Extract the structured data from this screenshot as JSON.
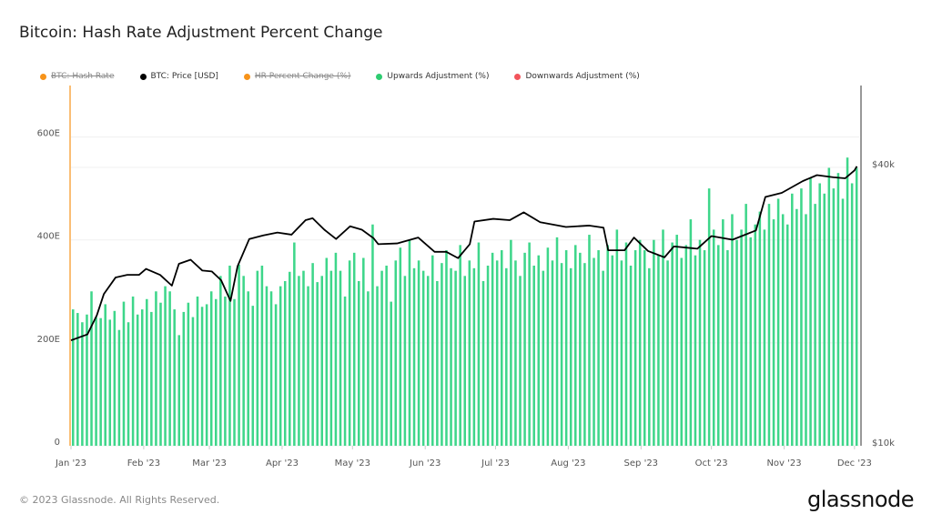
{
  "title": "Bitcoin: Hash Rate Adjustment Percent Change",
  "footer": "© 2023 Glassnode. All Rights Reserved.",
  "logo": "glassnode",
  "legend": [
    {
      "label": "BTC: Hash Rate",
      "color": "#f7931a",
      "hidden": true
    },
    {
      "label": "BTC: Price [USD]",
      "color": "#000000",
      "hidden": false
    },
    {
      "label": "HR Percent Change (%)",
      "color": "#f7931a",
      "hidden": true
    },
    {
      "label": "Upwards Adjustment (%)",
      "color": "#2ecc71",
      "hidden": false
    },
    {
      "label": "Downwards Adjustment (%)",
      "color": "#f2545b",
      "hidden": false
    }
  ],
  "chart_data": {
    "type": "bar",
    "title": "Bitcoin: Hash Rate Adjustment Percent Change",
    "xlim": [
      "2023-01-01",
      "2023-12-02"
    ],
    "x_ticks": [
      {
        "label": "Jan '23",
        "date": "2023-01-01"
      },
      {
        "label": "Feb '23",
        "date": "2023-02-01"
      },
      {
        "label": "Mar '23",
        "date": "2023-03-01"
      },
      {
        "label": "Apr '23",
        "date": "2023-04-01"
      },
      {
        "label": "May '23",
        "date": "2023-05-01"
      },
      {
        "label": "Jun '23",
        "date": "2023-06-01"
      },
      {
        "label": "Jul '23",
        "date": "2023-07-01"
      },
      {
        "label": "Aug '23",
        "date": "2023-08-01"
      },
      {
        "label": "Sep '23",
        "date": "2023-09-01"
      },
      {
        "label": "Oct '23",
        "date": "2023-10-01"
      },
      {
        "label": "Nov '23",
        "date": "2023-11-01"
      },
      {
        "label": "Dec '23",
        "date": "2023-12-01"
      }
    ],
    "left_axis": {
      "ylim": [
        0,
        700
      ],
      "ticks": [
        {
          "v": 0,
          "label": "0"
        },
        {
          "v": 200,
          "label": "200E"
        },
        {
          "v": 400,
          "label": "400E"
        },
        {
          "v": 600,
          "label": "600E"
        }
      ]
    },
    "right_axis": {
      "scale": "log",
      "ylim": [
        10000,
        40000
      ],
      "ticks": [
        {
          "v": 10000,
          "label": "$10k"
        },
        {
          "v": 40000,
          "label": "$40k"
        }
      ]
    },
    "grid": true,
    "legend_placement": "top-left",
    "bar_color": "#3ed68a",
    "price_color": "#000000",
    "series": [
      {
        "name": "Upwards Adjustment (%)",
        "type": "bar",
        "axis": "left",
        "values": [
          265,
          258,
          240,
          255,
          300,
          250,
          248,
          275,
          245,
          262,
          225,
          280,
          240,
          290,
          255,
          265,
          285,
          260,
          300,
          278,
          310,
          300,
          265,
          215,
          260,
          278,
          250,
          290,
          270,
          275,
          300,
          285,
          330,
          290,
          350,
          285,
          352,
          330,
          300,
          272,
          340,
          350,
          310,
          300,
          275,
          310,
          320,
          338,
          395,
          330,
          340,
          310,
          355,
          318,
          330,
          365,
          340,
          375,
          340,
          290,
          360,
          375,
          320,
          365,
          300,
          430,
          310,
          340,
          350,
          280,
          360,
          385,
          330,
          400,
          345,
          360,
          340,
          330,
          370,
          320,
          355,
          380,
          345,
          340,
          390,
          330,
          360,
          345,
          395,
          320,
          350,
          375,
          360,
          380,
          345,
          400,
          360,
          330,
          375,
          395,
          350,
          370,
          340,
          385,
          360,
          405,
          355,
          380,
          345,
          390,
          375,
          355,
          410,
          365,
          380,
          340,
          390,
          370,
          420,
          360,
          395,
          350,
          380,
          400,
          380,
          345,
          400,
          370,
          420,
          360,
          395,
          410,
          365,
          390,
          440,
          370,
          400,
          380,
          500,
          420,
          390,
          440,
          380,
          450,
          400,
          420,
          470,
          405,
          430,
          455,
          420,
          470,
          440,
          480,
          450,
          430,
          490,
          460,
          500,
          450,
          520,
          470,
          510,
          490,
          540,
          500,
          530,
          480,
          560,
          510,
          540
        ]
      },
      {
        "name": "BTC: Price [USD]",
        "type": "line",
        "axis": "right",
        "points": [
          [
            "2023-01-01",
            16600
          ],
          [
            "2023-01-08",
            17100
          ],
          [
            "2023-01-12",
            18800
          ],
          [
            "2023-01-15",
            20900
          ],
          [
            "2023-01-20",
            22700
          ],
          [
            "2023-01-25",
            23000
          ],
          [
            "2023-01-30",
            23000
          ],
          [
            "2023-02-02",
            23700
          ],
          [
            "2023-02-08",
            23000
          ],
          [
            "2023-02-13",
            21800
          ],
          [
            "2023-02-16",
            24300
          ],
          [
            "2023-02-21",
            24800
          ],
          [
            "2023-02-26",
            23500
          ],
          [
            "2023-03-02",
            23400
          ],
          [
            "2023-03-06",
            22400
          ],
          [
            "2023-03-10",
            20200
          ],
          [
            "2023-03-13",
            24000
          ],
          [
            "2023-03-18",
            27500
          ],
          [
            "2023-03-24",
            28000
          ],
          [
            "2023-03-30",
            28400
          ],
          [
            "2023-04-05",
            28100
          ],
          [
            "2023-04-11",
            30200
          ],
          [
            "2023-04-14",
            30500
          ],
          [
            "2023-04-19",
            28800
          ],
          [
            "2023-04-24",
            27500
          ],
          [
            "2023-04-30",
            29300
          ],
          [
            "2023-05-05",
            28800
          ],
          [
            "2023-05-10",
            27600
          ],
          [
            "2023-05-12",
            26800
          ],
          [
            "2023-05-20",
            26900
          ],
          [
            "2023-05-29",
            27700
          ],
          [
            "2023-06-05",
            25800
          ],
          [
            "2023-06-10",
            25800
          ],
          [
            "2023-06-15",
            25000
          ],
          [
            "2023-06-20",
            26800
          ],
          [
            "2023-06-22",
            30000
          ],
          [
            "2023-06-30",
            30400
          ],
          [
            "2023-07-07",
            30200
          ],
          [
            "2023-07-13",
            31400
          ],
          [
            "2023-07-20",
            29900
          ],
          [
            "2023-07-31",
            29200
          ],
          [
            "2023-08-10",
            29400
          ],
          [
            "2023-08-16",
            29100
          ],
          [
            "2023-08-18",
            26000
          ],
          [
            "2023-08-25",
            26000
          ],
          [
            "2023-08-29",
            27700
          ],
          [
            "2023-09-04",
            25900
          ],
          [
            "2023-09-11",
            25100
          ],
          [
            "2023-09-15",
            26500
          ],
          [
            "2023-09-25",
            26200
          ],
          [
            "2023-10-01",
            27900
          ],
          [
            "2023-10-10",
            27400
          ],
          [
            "2023-10-20",
            28700
          ],
          [
            "2023-10-24",
            33900
          ],
          [
            "2023-10-31",
            34600
          ],
          [
            "2023-11-09",
            36700
          ],
          [
            "2023-11-15",
            37800
          ],
          [
            "2023-11-22",
            37400
          ],
          [
            "2023-11-27",
            37200
          ],
          [
            "2023-12-01",
            38700
          ],
          [
            "2023-12-02",
            39500
          ]
        ]
      }
    ]
  }
}
